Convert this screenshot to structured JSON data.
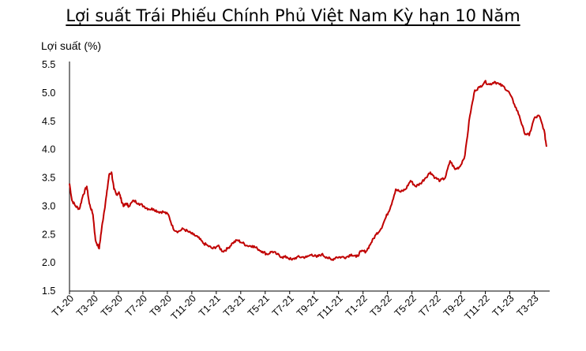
{
  "chart_data": {
    "type": "line",
    "title": "Lợi suất Trái Phiếu Chính Phủ Việt Nam Kỳ hạn 10 Năm",
    "ylabel": "Lợi suất (%)",
    "xlabel": "",
    "ylim": [
      1.5,
      5.5
    ],
    "yticks": [
      "1.5",
      "2.0",
      "2.5",
      "3.0",
      "3.5",
      "4.0",
      "4.5",
      "5.0",
      "5.5"
    ],
    "xticks": [
      "T1-20",
      "T3-20",
      "T5-20",
      "T7-20",
      "T9-20",
      "T11-20",
      "T1-21",
      "T3-21",
      "T5-21",
      "T7-21",
      "T9-21",
      "T11-21",
      "T1-22",
      "T3-22",
      "T5-22",
      "T7-22",
      "T9-22",
      "T11-22",
      "T1-23",
      "T3-23"
    ],
    "grid": false,
    "color": "#c00000",
    "series": [
      {
        "x": [
          0,
          0.1,
          0.25,
          0.4,
          0.55,
          0.7,
          0.8,
          0.95,
          1.05,
          1.2,
          1.3,
          1.4,
          1.5,
          1.6,
          1.7,
          1.8,
          1.9,
          2.0,
          2.1,
          2.2,
          2.3,
          2.4,
          2.6,
          2.8,
          3.0,
          3.2,
          3.4,
          3.6,
          3.8,
          4.0,
          4.2,
          4.4,
          4.6,
          4.8,
          5.0,
          5.2,
          5.4,
          5.6,
          5.8,
          6.0,
          6.2,
          6.4,
          6.6,
          6.8,
          7.0,
          7.2,
          7.4,
          7.6,
          7.8,
          8.0,
          8.2,
          8.4,
          8.6,
          8.8,
          9.0,
          9.2,
          9.4,
          9.6,
          9.8,
          10.0,
          10.2,
          10.4,
          10.6,
          10.8,
          11.0,
          11.2,
          11.4,
          11.6,
          11.8,
          12.0,
          12.2,
          12.4,
          12.6,
          12.8,
          13.0,
          13.2,
          13.4,
          13.6,
          13.8,
          14.0,
          14.2,
          14.4,
          14.6,
          14.8,
          15.0,
          15.2,
          15.4,
          15.6,
          15.8,
          16.0,
          16.2,
          16.4,
          16.6,
          16.8,
          17.0,
          17.2,
          17.4,
          17.6,
          17.8,
          18.0,
          18.2,
          18.4,
          18.6,
          18.8,
          19.0,
          19.2,
          19.3
        ],
        "values": [
          3.4,
          3.1,
          3.0,
          2.95,
          3.2,
          3.35,
          3.05,
          2.85,
          2.4,
          2.25,
          2.6,
          2.9,
          3.2,
          3.55,
          3.6,
          3.3,
          3.2,
          3.25,
          3.1,
          3.0,
          3.05,
          3.0,
          3.1,
          3.05,
          3.0,
          2.95,
          2.95,
          2.9,
          2.9,
          2.85,
          2.6,
          2.55,
          2.6,
          2.55,
          2.5,
          2.45,
          2.35,
          2.3,
          2.25,
          2.3,
          2.2,
          2.25,
          2.35,
          2.4,
          2.35,
          2.3,
          2.3,
          2.25,
          2.2,
          2.15,
          2.2,
          2.15,
          2.1,
          2.1,
          2.05,
          2.1,
          2.1,
          2.1,
          2.15,
          2.1,
          2.15,
          2.1,
          2.05,
          2.1,
          2.1,
          2.1,
          2.15,
          2.1,
          2.2,
          2.2,
          2.35,
          2.5,
          2.6,
          2.8,
          3.0,
          3.3,
          3.25,
          3.3,
          3.45,
          3.35,
          3.4,
          3.5,
          3.6,
          3.5,
          3.45,
          3.5,
          3.8,
          3.65,
          3.7,
          3.9,
          4.6,
          5.05,
          5.1,
          5.2,
          5.15,
          5.2,
          5.15,
          5.1,
          5.0,
          4.8,
          4.6,
          4.3,
          4.25,
          4.55,
          4.6,
          4.35,
          4.05
        ]
      }
    ]
  }
}
